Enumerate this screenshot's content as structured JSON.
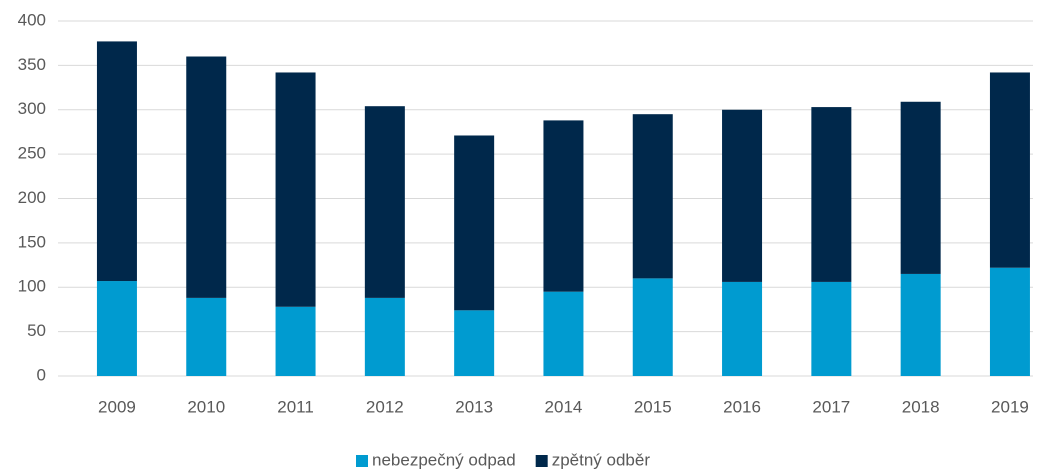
{
  "chart_data": {
    "type": "stacked-bar",
    "categories": [
      "2009",
      "2010",
      "2011",
      "2012",
      "2013",
      "2014",
      "2015",
      "2016",
      "2017",
      "2018",
      "2019"
    ],
    "series": [
      {
        "name": "nebezpečný odpad",
        "color": "#009bd0",
        "values": [
          107,
          88,
          78,
          88,
          74,
          95,
          110,
          106,
          106,
          115,
          122
        ]
      },
      {
        "name": "zpětný odběr",
        "color": "#00284b",
        "values": [
          270,
          272,
          264,
          216,
          197,
          193,
          185,
          194,
          197,
          194,
          220
        ]
      }
    ],
    "ylim": [
      0,
      400
    ],
    "yticks": [
      0,
      50,
      100,
      150,
      200,
      250,
      300,
      350,
      400
    ],
    "grid": true,
    "legend": "bottom"
  }
}
